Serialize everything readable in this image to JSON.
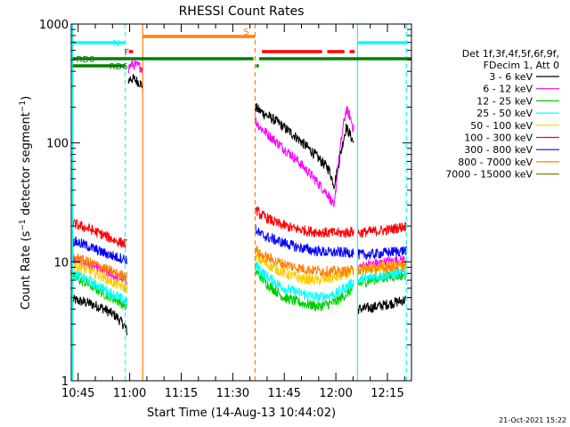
{
  "chart_data": {
    "type": "line",
    "title": "RHESSI Count Rates",
    "xlabel": "Start Time (14-Aug-13 10:44:02)",
    "ylabel_parts": [
      "Count Rate (s",
      "−1",
      " detector segment",
      "−1",
      ")"
    ],
    "yscale": "log",
    "ylim": [
      1,
      1000
    ],
    "xlim_min": [
      643,
      742
    ],
    "x_ticks": [
      {
        "min": 645,
        "label": "10:45"
      },
      {
        "min": 660,
        "label": "11:00"
      },
      {
        "min": 675,
        "label": "11:15"
      },
      {
        "min": 690,
        "label": "11:30"
      },
      {
        "min": 705,
        "label": "11:45"
      },
      {
        "min": 720,
        "label": "12:00"
      },
      {
        "min": 735,
        "label": "12:15"
      }
    ],
    "y_ticks": [
      {
        "v": 1,
        "label": "1"
      },
      {
        "v": 10,
        "label": "10"
      },
      {
        "v": 100,
        "label": "100"
      },
      {
        "v": 1000,
        "label": "1000"
      }
    ],
    "legend_header": [
      "Det 1f,3f,4f,5f,6f,9f,",
      "FDecim 1, Att 0"
    ],
    "series": [
      {
        "name": "3 - 6 keV",
        "color": "#000000",
        "segments": [
          {
            "x": [
              643.5,
              648,
              652,
              656,
              658.5,
              659.2
            ],
            "y": [
              4.8,
              4.5,
              4.1,
              3.5,
              2.9,
              2.6
            ]
          },
          {
            "x": [
              659.6,
              660.2,
              661.5,
              663,
              663.8
            ],
            "y": [
              330,
              350,
              340,
              320,
              300
            ]
          },
          {
            "x": [
              696.5,
              698,
              703,
              708,
              713,
              718,
              719.5,
              720.5,
              722,
              723,
              724,
              725.2
            ],
            "y": [
              200,
              185,
              150,
              115,
              85,
              60,
              44,
              60,
              100,
              135,
              120,
              100
            ]
          },
          {
            "x": [
              726.5,
              730,
              735,
              740.5
            ],
            "y": [
              4.0,
              4.1,
              4.4,
              4.8
            ]
          }
        ]
      },
      {
        "name": "6 - 12 keV",
        "color": "#ff00ff",
        "segments": [
          {
            "x": [
              643.5,
              648,
              652,
              656,
              659.2
            ],
            "y": [
              10.5,
              9.5,
              8.5,
              7.5,
              7.0
            ]
          },
          {
            "x": [
              659.6,
              660.5,
              661.5,
              663,
              663.8
            ],
            "y": [
              420,
              460,
              450,
              440,
              420
            ]
          },
          {
            "x": [
              696.5,
              698,
              703,
              708,
              713,
              718,
              719.5,
              720.5,
              722,
              723,
              724,
              725.2
            ],
            "y": [
              155,
              135,
              100,
              75,
              53,
              36,
              28,
              60,
              130,
              190,
              170,
              130
            ]
          },
          {
            "x": [
              726.5,
              730,
              735,
              740.5
            ],
            "y": [
              9.0,
              9.5,
              10.0,
              10.5
            ]
          }
        ]
      },
      {
        "name": "12 - 25 keV",
        "color": "#00cc00",
        "segments": [
          {
            "x": [
              643.5,
              648,
              652,
              656,
              659.2
            ],
            "y": [
              7.5,
              6.5,
              5.5,
              4.8,
              4.2
            ]
          },
          {
            "x": [
              696.5,
              700,
              705,
              710,
              715,
              720,
              725.2
            ],
            "y": [
              8.5,
              6.5,
              5.0,
              4.5,
              4.2,
              4.6,
              6.0
            ]
          },
          {
            "x": [
              726.5,
              730,
              735,
              740.5
            ],
            "y": [
              6.5,
              7.0,
              7.5,
              7.8
            ]
          }
        ]
      },
      {
        "name": "25 - 50 keV",
        "color": "#00ffff",
        "segments": [
          {
            "x": [
              643.5,
              648,
              652,
              656,
              659.2
            ],
            "y": [
              8.0,
              7.0,
              6.0,
              5.2,
              4.6
            ]
          },
          {
            "x": [
              696.5,
              700,
              705,
              710,
              715,
              720,
              725.2
            ],
            "y": [
              9.5,
              7.5,
              6.0,
              5.4,
              5.0,
              5.4,
              6.8
            ]
          },
          {
            "x": [
              726.5,
              730,
              735,
              740.5
            ],
            "y": [
              7.0,
              7.4,
              7.8,
              8.2
            ]
          }
        ]
      },
      {
        "name": "50 - 100 keV",
        "color": "#ffcc00",
        "segments": [
          {
            "x": [
              643.5,
              648,
              652,
              656,
              659.2
            ],
            "y": [
              9.5,
              8.5,
              7.5,
              6.5,
              6.0
            ]
          },
          {
            "x": [
              696.5,
              700,
              705,
              710,
              715,
              720,
              725.2
            ],
            "y": [
              11.0,
              9.5,
              8.0,
              7.2,
              7.0,
              7.4,
              8.2
            ]
          },
          {
            "x": [
              726.5,
              730,
              735,
              740.5
            ],
            "y": [
              8.5,
              8.8,
              9.2,
              9.5
            ]
          }
        ]
      },
      {
        "name": "100 - 300 keV",
        "color": "#ff0000",
        "segments": [
          {
            "x": [
              643.5,
              648,
              652,
              656,
              659.2
            ],
            "y": [
              21,
              19,
              17,
              15,
              14
            ]
          },
          {
            "x": [
              696.5,
              698,
              703,
              708,
              713,
              718,
              722,
              725.2
            ],
            "y": [
              28,
              25,
              21,
              19,
              18,
              17.5,
              17.5,
              18
            ]
          },
          {
            "x": [
              726.5,
              730,
              735,
              740.5
            ],
            "y": [
              17.5,
              18,
              18.5,
              20
            ]
          }
        ]
      },
      {
        "name": "300 - 800 keV",
        "color": "#0000ff",
        "segments": [
          {
            "x": [
              643.5,
              648,
              652,
              656,
              659.2
            ],
            "y": [
              15,
              13.5,
              12,
              11,
              10.5
            ]
          },
          {
            "x": [
              696.5,
              698,
              703,
              708,
              713,
              718,
              722,
              725.2
            ],
            "y": [
              19,
              17,
              15,
              13.5,
              12.5,
              12,
              12,
              12
            ]
          },
          {
            "x": [
              726.5,
              730,
              735,
              740.5
            ],
            "y": [
              11.5,
              11.5,
              12,
              12.5
            ]
          }
        ]
      },
      {
        "name": "800 - 7000 keV",
        "color": "#ff8000",
        "segments": [
          {
            "x": [
              643.5,
              648,
              652,
              656,
              659.2
            ],
            "y": [
              11,
              10,
              9,
              8,
              7.5
            ]
          },
          {
            "x": [
              696.5,
              698,
              703,
              708,
              713,
              718,
              722,
              725.2
            ],
            "y": [
              13,
              11.5,
              10,
              9,
              8.5,
              8.3,
              8.3,
              8.5
            ]
          },
          {
            "x": [
              726.5,
              730,
              735,
              740.5
            ],
            "y": [
              8.5,
              8.7,
              9.0,
              9.3
            ]
          }
        ]
      },
      {
        "name": "7000 - 15000 keV",
        "color": "#808000",
        "segments": []
      }
    ],
    "vlines": [
      {
        "min": 643.4,
        "color": "#00ffff",
        "dash": false
      },
      {
        "min": 658.7,
        "color": "#00ffff",
        "dash": true
      },
      {
        "min": 663.8,
        "color": "#ff8000",
        "dash": false
      },
      {
        "min": 696.5,
        "color": "#ff8000",
        "dash": true
      },
      {
        "min": 726.3,
        "color": "#00ffff",
        "dash": false
      },
      {
        "min": 740.5,
        "color": "#00ffff",
        "dash": true
      }
    ],
    "flag_bars": [
      {
        "label": "N",
        "color": "#00ffff",
        "label_color": "#00ffff",
        "y": 48,
        "spans": [
          [
            643.4,
            658.7
          ],
          [
            726.3,
            740.5
          ]
        ]
      },
      {
        "label": "S",
        "color": "#ff8000",
        "label_color": "#ff8000",
        "y": 41,
        "spans": [
          [
            663.8,
            696.5
          ]
        ]
      },
      {
        "label": "F",
        "color": "#ff0000",
        "label_color": "#ff0000",
        "y": 58,
        "spans": [
          [
            659.8,
            661.0
          ],
          [
            698.5,
            716.0
          ],
          [
            717.5,
            722.5
          ],
          [
            724.0,
            725.5
          ]
        ]
      },
      {
        "label": "RD0",
        "color": "#008000",
        "label_color": "#008000",
        "y": 66,
        "spans": [
          [
            643.4,
            696.0
          ],
          [
            697.7,
            742.0
          ]
        ]
      },
      {
        "label": "RD6",
        "color": "#008000",
        "label_color": "#008000",
        "y": 74,
        "spans": [
          [
            643.4,
            658.7
          ],
          [
            696.8,
            697.6
          ]
        ]
      }
    ],
    "grid": false,
    "legend_position": "right"
  },
  "footer": {
    "timestamp": "21-Oct-2021 15:22"
  }
}
